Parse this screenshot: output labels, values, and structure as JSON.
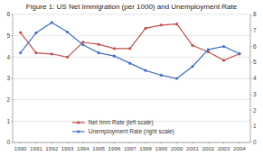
{
  "chart_data": {
    "type": "line",
    "title": "Figure 1: US Net Immigration (per 1000) and Unemployment Rate",
    "x": [
      1990,
      1991,
      1992,
      1993,
      1994,
      1995,
      1996,
      1997,
      1998,
      1999,
      2000,
      2001,
      2002,
      2003,
      2004
    ],
    "xlim": [
      1989.5,
      2004.7
    ],
    "xticks": [
      1990,
      1991,
      1992,
      1993,
      1994,
      1995,
      1996,
      1997,
      1998,
      1999,
      2000,
      2001,
      2002,
      2003,
      2004
    ],
    "series": [
      {
        "name": "Net Imm Rate (left scale)",
        "color": "#c0504d",
        "marker": "circle",
        "values": [
          5.15,
          4.2,
          4.15,
          4.0,
          4.7,
          4.6,
          4.4,
          4.4,
          5.35,
          5.5,
          5.55,
          4.55,
          4.25,
          3.85,
          4.15
        ]
      },
      {
        "name": "Unemployment Rate (right scale)",
        "color": "#4472c4",
        "marker": "circle",
        "axis": "y2",
        "values": [
          5.6,
          6.85,
          7.5,
          6.9,
          6.1,
          5.6,
          5.4,
          4.95,
          4.5,
          4.2,
          4.0,
          4.75,
          5.8,
          6.0,
          5.55
        ]
      }
    ],
    "ylim": [
      0,
      6
    ],
    "yticks": [
      0,
      1,
      2,
      3,
      4,
      5,
      6
    ],
    "y2lim": [
      0,
      8
    ],
    "y2ticks": [
      0,
      1,
      2,
      3,
      4,
      5,
      6,
      7,
      8
    ],
    "grid": true,
    "legend": "lower left"
  }
}
